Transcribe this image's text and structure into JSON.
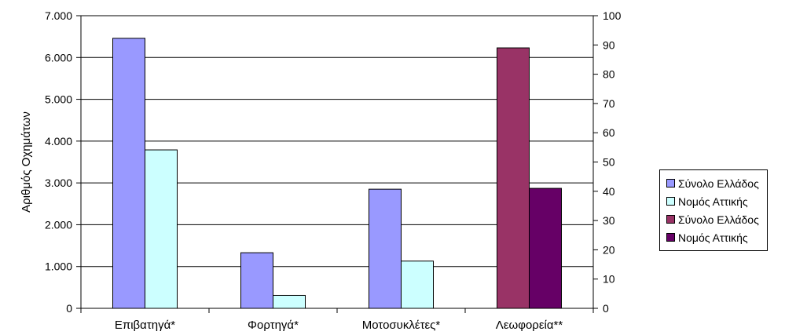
{
  "chart_data": {
    "type": "bar",
    "categories": [
      "Επιβατηγά*",
      "Φορτηγά*",
      "Μοτοσυκλέτες*",
      "Λεωφορεία**"
    ],
    "ylabel": "Αριθμός Οχημάτων",
    "left_axis": {
      "ylim": [
        0,
        7000
      ],
      "ticks": [
        0,
        1000,
        2000,
        3000,
        4000,
        5000,
        6000,
        7000
      ],
      "tick_labels": [
        "0",
        "1.000",
        "2.000",
        "3.000",
        "4.000",
        "5.000",
        "6.000",
        "7.000"
      ]
    },
    "right_axis": {
      "ylim": [
        0,
        100
      ],
      "ticks": [
        0,
        10,
        20,
        30,
        40,
        50,
        60,
        70,
        80,
        90,
        100
      ],
      "tick_labels": [
        "0",
        "10",
        "20",
        "30",
        "40",
        "50",
        "60",
        "70",
        "80",
        "90",
        "100"
      ]
    },
    "grid": "horizontal",
    "legend_position": "right",
    "series": [
      {
        "name": "Σύνολο Ελλάδος",
        "axis": "left",
        "color": "#9999ff",
        "values": [
          6460,
          1330,
          2850,
          null
        ]
      },
      {
        "name": "Νομός Αττικής",
        "axis": "left",
        "color": "#ccffff",
        "values": [
          3790,
          310,
          1130,
          null
        ]
      },
      {
        "name": "Σύνολο Ελλάδος",
        "axis": "right",
        "color": "#993366",
        "values": [
          null,
          null,
          null,
          89
        ]
      },
      {
        "name": "Νομός Αττικής",
        "axis": "right",
        "color": "#660066",
        "values": [
          null,
          null,
          null,
          41
        ]
      }
    ]
  }
}
